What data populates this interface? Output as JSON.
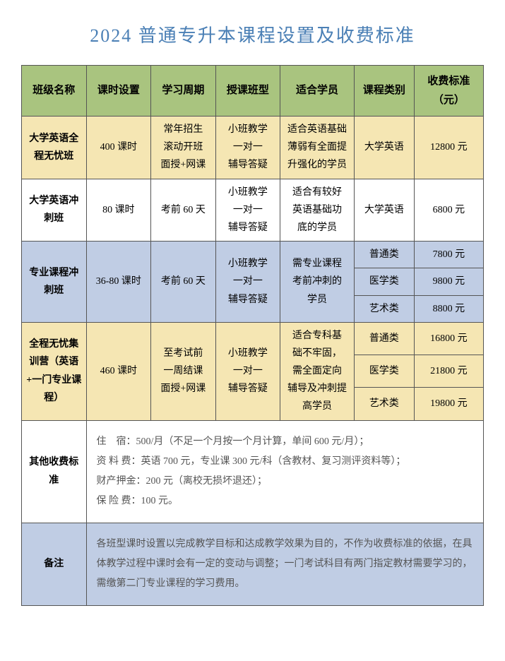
{
  "title": "2024 普通专升本课程设置及收费标准",
  "headers": [
    "班级名称",
    "课时设置",
    "学习周期",
    "授课班型",
    "适合学员",
    "课程类别",
    "收费标准（元）"
  ],
  "row1": {
    "name": "大学英语全程无忧班",
    "hours": "400 课时",
    "period": "常年招生\n滚动开班\n面授+网课",
    "type": "小班教学\n一对一\n辅导答疑",
    "student": "适合英语基础\n薄弱有全面提\n升强化的学员",
    "cat": "大学英语",
    "fee": "12800 元"
  },
  "row2": {
    "name": "大学英语冲刺班",
    "hours": "80 课时",
    "period": "考前 60 天",
    "type": "小班教学\n一对一\n辅导答疑",
    "student": "适合有较好\n英语基础功\n底的学员",
    "cat": "大学英语",
    "fee": "6800 元"
  },
  "row3": {
    "name": "专业课程冲刺班",
    "hours": "36-80 课时",
    "period": "考前 60 天",
    "type": "小班教学\n一对一\n辅导答疑",
    "student": "需专业课程\n考前冲刺的\n学员",
    "cats": [
      "普通类",
      "医学类",
      "艺术类"
    ],
    "fees": [
      "7800 元",
      "9800 元",
      "8800 元"
    ]
  },
  "row4": {
    "name": "全程无忧集训营（英语+一门专业课程）",
    "hours": "460 课时",
    "period": "至考试前\n一周结课\n面授+网课",
    "type": "小班教学\n一对一\n辅导答疑",
    "student": "适合专科基\n础不牢固，\n需全面定向\n辅导及冲刺提\n高学员",
    "cats": [
      "普通类",
      "医学类",
      "艺术类"
    ],
    "fees": [
      "16800 元",
      "21800 元",
      "19800 元"
    ]
  },
  "other": {
    "label": "其他收费标　准",
    "lines": [
      "住　宿：500/月（不足一个月按一个月计算，单间 600 元/月）；",
      "资 料 费：英语 700 元，专业课 300 元/科（含教材、复习测评资料等）；",
      "财产押金：200 元（离校无损坏退还）；",
      "保 险 费：100 元。"
    ]
  },
  "notes": {
    "label": "备注",
    "text": "各班型课时设置以完成教学目标和达成教学效果为目的，不作为收费标准的依据，在具体教学过程中课时会有一定的变动与调整；一门考试科目有两门指定教材需要学习的，需缴第二门专业课程的学习费用。"
  }
}
